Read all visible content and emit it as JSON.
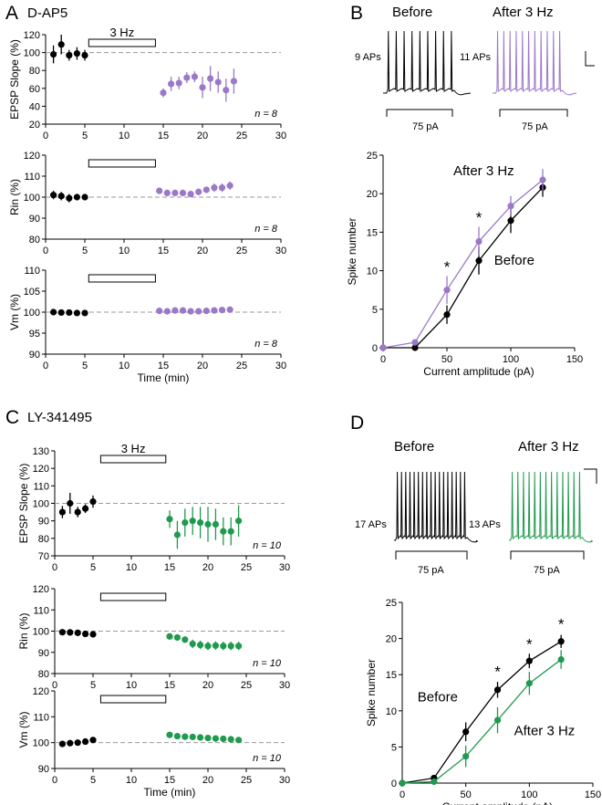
{
  "colors": {
    "black": "#000000",
    "purple": "#9B78C8",
    "green": "#1F9A4E",
    "dash": "#9a9a9a"
  },
  "panel_letters": {
    "a": "A",
    "b": "B",
    "c": "C",
    "d": "D"
  },
  "panel_titles": {
    "a": "D-AP5",
    "c": "LY-341495"
  },
  "time_xlabel": "Time (min)",
  "current_xlabel": "Current amplitude (pA)",
  "spike_ylabel": "Spike number",
  "stim_label": "3 Hz",
  "traces": {
    "b": {
      "before_label": "Before",
      "after_label": "After 3 Hz",
      "before_aps": "9 APs",
      "after_aps": "11 APs",
      "stim": "75 pA"
    },
    "d": {
      "before_label": "Before",
      "after_label": "After 3 Hz",
      "before_aps": "17 APs",
      "after_aps": "13 APs",
      "stim": "75 pA"
    }
  },
  "chart_data": [
    {
      "id": "A1",
      "type": "scatter",
      "ylabel": "EPSP Slope (%)",
      "n_label": "n = 8",
      "xlim": [
        0,
        30
      ],
      "ylim": [
        20,
        120
      ],
      "yticks": [
        20,
        40,
        60,
        80,
        100,
        120
      ],
      "xticks": [
        0,
        5,
        10,
        15,
        20,
        25,
        30
      ],
      "reference": 100,
      "stim_bar": {
        "start": 5.5,
        "end": 14,
        "label": "3 Hz"
      },
      "series": [
        {
          "name": "Before",
          "color": "#000000",
          "x": [
            1,
            2,
            3,
            4,
            5
          ],
          "y": [
            98,
            109,
            97,
            99,
            97
          ],
          "err": [
            10,
            11,
            6,
            7,
            6
          ]
        },
        {
          "name": "After 3 Hz",
          "color": "#9B78C8",
          "x": [
            15,
            16,
            17,
            18,
            19,
            20,
            21,
            22,
            23,
            24
          ],
          "y": [
            55,
            65,
            66,
            72,
            73,
            61,
            71,
            67,
            58,
            68
          ],
          "err": [
            5,
            8,
            7,
            6,
            6,
            12,
            14,
            12,
            13,
            14
          ]
        }
      ]
    },
    {
      "id": "A2",
      "type": "scatter",
      "ylabel": "Rin (%)",
      "n_label": "n = 8",
      "xlim": [
        0,
        30
      ],
      "ylim": [
        80,
        120
      ],
      "yticks": [
        80,
        90,
        100,
        110,
        120
      ],
      "xticks": [
        0,
        5,
        10,
        15,
        20,
        25,
        30
      ],
      "reference": 100,
      "stim_bar": {
        "start": 5.5,
        "end": 14,
        "label": ""
      },
      "series": [
        {
          "name": "Before",
          "color": "#000000",
          "x": [
            1,
            2,
            3,
            4,
            5
          ],
          "y": [
            101,
            100.5,
            99.5,
            100,
            100
          ],
          "err": [
            2,
            2,
            2,
            1.5,
            1.5
          ]
        },
        {
          "name": "After 3 Hz",
          "color": "#9B78C8",
          "x": [
            14.5,
            15.5,
            16.5,
            17.5,
            18.5,
            19.5,
            20.5,
            21.5,
            22.5,
            23.5
          ],
          "y": [
            103,
            102,
            102,
            102,
            101.5,
            102.5,
            103.5,
            104.5,
            104.5,
            105.5
          ],
          "err": [
            1,
            1,
            1,
            1,
            1,
            1.5,
            1.5,
            2,
            2,
            2
          ]
        }
      ]
    },
    {
      "id": "A3",
      "type": "scatter",
      "ylabel": "Vm (%)",
      "n_label": "n = 8",
      "xlabel": "Time (min)",
      "xlim": [
        0,
        30
      ],
      "ylim": [
        90,
        110
      ],
      "yticks": [
        90,
        95,
        100,
        105,
        110
      ],
      "xticks": [
        0,
        5,
        10,
        15,
        20,
        25,
        30
      ],
      "reference": 100,
      "stim_bar": {
        "start": 5.5,
        "end": 14,
        "label": ""
      },
      "series": [
        {
          "name": "Before",
          "color": "#000000",
          "x": [
            1,
            2,
            3,
            4,
            5
          ],
          "y": [
            100,
            99.9,
            99.9,
            99.8,
            99.8
          ],
          "err": [
            0.3,
            0.3,
            0.3,
            0.3,
            0.3
          ]
        },
        {
          "name": "After 3 Hz",
          "color": "#9B78C8",
          "x": [
            14.5,
            15.5,
            16.5,
            17.5,
            18.5,
            19.5,
            20.5,
            21.5,
            22.5,
            23.5
          ],
          "y": [
            100.3,
            100.2,
            100.4,
            100.4,
            100.2,
            100.2,
            100.3,
            100.4,
            100.5,
            100.6
          ],
          "err": [
            0.4,
            0.4,
            0.4,
            0.4,
            0.4,
            0.4,
            0.4,
            0.4,
            0.4,
            0.4
          ]
        }
      ]
    },
    {
      "id": "B",
      "type": "line",
      "xlabel": "Current amplitude (pA)",
      "ylabel": "Spike number",
      "xlim": [
        0,
        150
      ],
      "ylim": [
        0,
        25
      ],
      "xticks": [
        0,
        50,
        100,
        150
      ],
      "yticks": [
        0,
        5,
        10,
        15,
        20,
        25
      ],
      "series": [
        {
          "name": "Before",
          "color": "#000000",
          "x": [
            0,
            25,
            50,
            75,
            100,
            125
          ],
          "y": [
            0,
            0,
            4.3,
            11.3,
            16.5,
            20.8
          ],
          "err": [
            0,
            0,
            1.2,
            1.8,
            1.6,
            1.2
          ]
        },
        {
          "name": "After 3 Hz",
          "color": "#9B78C8",
          "x": [
            0,
            25,
            50,
            75,
            100,
            125
          ],
          "y": [
            0,
            0.7,
            7.5,
            13.8,
            18.4,
            21.8
          ],
          "err": [
            0,
            0.3,
            1.8,
            1.9,
            1.3,
            1.4
          ]
        }
      ],
      "annotations": [
        {
          "text": "*",
          "x": 50,
          "y": 10.8
        },
        {
          "text": "*",
          "x": 75,
          "y": 17.2
        }
      ],
      "labels": [
        {
          "text": "After 3 Hz",
          "x": 55,
          "y": 22.4,
          "color": "#9B78C8"
        },
        {
          "text": "Before",
          "x": 87,
          "y": 10.8,
          "color": "#000000"
        }
      ]
    },
    {
      "id": "C1",
      "type": "scatter",
      "ylabel": "EPSP Slope (%)",
      "n_label": "n = 10",
      "xlim": [
        0,
        30
      ],
      "ylim": [
        70,
        130
      ],
      "yticks": [
        70,
        80,
        90,
        100,
        110,
        120,
        130
      ],
      "xticks": [
        0,
        5,
        10,
        15,
        20,
        25,
        30
      ],
      "reference": 100,
      "stim_bar": {
        "start": 6,
        "end": 14.5,
        "label": "3 Hz"
      },
      "series": [
        {
          "name": "Before",
          "color": "#000000",
          "x": [
            1,
            2,
            3,
            4,
            5
          ],
          "y": [
            95,
            100,
            95,
            97,
            101
          ],
          "err": [
            3.5,
            6,
            3,
            2.5,
            3.5
          ]
        },
        {
          "name": "After 3 Hz",
          "color": "#1F9A4E",
          "x": [
            15,
            16,
            17,
            18,
            19,
            20,
            21,
            22,
            23,
            24
          ],
          "y": [
            91,
            82,
            89,
            90,
            89,
            88,
            88,
            84,
            84,
            90
          ],
          "err": [
            5,
            8,
            8,
            8,
            9,
            10,
            9,
            8,
            8,
            9
          ]
        }
      ]
    },
    {
      "id": "C2",
      "type": "scatter",
      "ylabel": "Rin (%)",
      "n_label": "n = 10",
      "xlim": [
        0,
        30
      ],
      "ylim": [
        80,
        120
      ],
      "yticks": [
        80,
        90,
        100,
        110,
        120
      ],
      "xticks": [
        0,
        5,
        10,
        15,
        20,
        25,
        30
      ],
      "reference": 100,
      "stim_bar": {
        "start": 6,
        "end": 14.5,
        "label": ""
      },
      "series": [
        {
          "name": "Before",
          "color": "#000000",
          "x": [
            1,
            2,
            3,
            4,
            5
          ],
          "y": [
            99.5,
            99.4,
            99.2,
            98.7,
            98.5
          ],
          "err": [
            0.8,
            0.8,
            0.8,
            0.8,
            0.8
          ]
        },
        {
          "name": "After 3 Hz",
          "color": "#1F9A4E",
          "x": [
            15,
            16,
            17,
            18,
            19,
            20,
            21,
            22,
            23,
            24
          ],
          "y": [
            97.5,
            97,
            96,
            94,
            93.5,
            93,
            93.2,
            93,
            93,
            93
          ],
          "err": [
            1.5,
            1.5,
            1.5,
            2,
            2,
            2,
            2,
            2,
            2,
            2
          ]
        }
      ]
    },
    {
      "id": "C3",
      "type": "scatter",
      "ylabel": "Vm (%)",
      "n_label": "n = 10",
      "xlabel": "Time (min)",
      "xlim": [
        0,
        30
      ],
      "ylim": [
        90,
        120
      ],
      "yticks": [
        90,
        100,
        110,
        120
      ],
      "xticks": [
        0,
        5,
        10,
        15,
        20,
        25,
        30
      ],
      "reference": 100,
      "stim_bar": {
        "start": 6,
        "end": 14.5,
        "label": ""
      },
      "series": [
        {
          "name": "Before",
          "color": "#000000",
          "x": [
            1,
            2,
            3,
            4,
            5
          ],
          "y": [
            99.5,
            99.8,
            100,
            100.4,
            101
          ],
          "err": [
            0.6,
            0.6,
            0.6,
            0.6,
            0.6
          ]
        },
        {
          "name": "After 3 Hz",
          "color": "#1F9A4E",
          "x": [
            15,
            16,
            17,
            18,
            19,
            20,
            21,
            22,
            23,
            24
          ],
          "y": [
            103,
            102.5,
            102.3,
            102.2,
            102,
            101.8,
            101.6,
            101.5,
            101.3,
            101
          ],
          "err": [
            0.8,
            0.8,
            0.8,
            0.8,
            0.8,
            0.8,
            0.8,
            0.8,
            0.8,
            0.8
          ]
        }
      ]
    },
    {
      "id": "D",
      "type": "line",
      "xlabel": "Current amplitude (pA)",
      "ylabel": "Spike number",
      "xlim": [
        0,
        150
      ],
      "ylim": [
        0,
        25
      ],
      "xticks": [
        0,
        50,
        100,
        150
      ],
      "yticks": [
        0,
        5,
        10,
        15,
        20,
        25
      ],
      "series": [
        {
          "name": "Before",
          "color": "#000000",
          "x": [
            0,
            25,
            50,
            75,
            100,
            125
          ],
          "y": [
            0,
            0.7,
            7.1,
            12.9,
            16.9,
            19.6
          ],
          "err": [
            0,
            0.3,
            1.3,
            1.1,
            1.0,
            0.9
          ]
        },
        {
          "name": "After 3 Hz",
          "color": "#1F9A4E",
          "x": [
            0,
            25,
            50,
            75,
            100,
            125
          ],
          "y": [
            0,
            0.2,
            3.7,
            8.7,
            13.8,
            17.1
          ],
          "err": [
            0,
            0.3,
            1.5,
            1.8,
            1.6,
            1.3
          ]
        }
      ],
      "annotations": [
        {
          "text": "*",
          "x": 75,
          "y": 15.7
        },
        {
          "text": "*",
          "x": 100,
          "y": 19.5
        },
        {
          "text": "*",
          "x": 125,
          "y": 22.3
        }
      ],
      "labels": [
        {
          "text": "Before",
          "x": 12,
          "y": 11.3,
          "color": "#000000"
        },
        {
          "text": "After 3 Hz",
          "x": 88,
          "y": 6.6,
          "color": "#1F9A4E"
        }
      ]
    }
  ]
}
